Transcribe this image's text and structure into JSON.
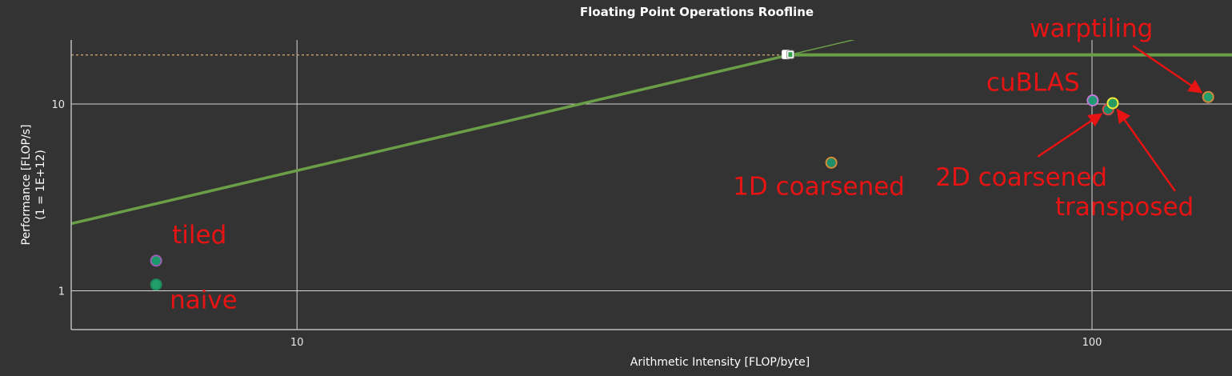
{
  "chart_data": {
    "type": "scatter",
    "title": "Floating Point Operations Roofline",
    "xlabel": "Arithmetic Intensity [FLOP/byte]",
    "ylabel": "Performance [FLOP/s]",
    "ylabel_sub": "(1 = 1E+12)",
    "x_scale": "log",
    "y_scale": "log",
    "xlim": [
      5.2,
      150
    ],
    "ylim": [
      0.62,
      22
    ],
    "x_ticks": [
      {
        "value": 10,
        "label": "10"
      },
      {
        "value": 100,
        "label": "100"
      }
    ],
    "y_ticks": [
      {
        "value": 1,
        "label": "1"
      },
      {
        "value": 10,
        "label": "10"
      }
    ],
    "grid": true,
    "roofline": {
      "peak_performance": 18.3,
      "memory_bandwidth": 0.44,
      "ridge_point": 41.5,
      "color": "#6a9e47",
      "peak_dashed_color": "#c8a26e"
    },
    "points": [
      {
        "name": "naive",
        "x": 6.65,
        "y": 1.08,
        "fill": "#229e6a",
        "stroke": "#1d8a5a",
        "label_color": "#e81313"
      },
      {
        "name": "tiled",
        "x": 6.65,
        "y": 1.45,
        "fill": "#1a9a6a",
        "stroke": "#9b5fb0",
        "label_color": "#e81313"
      },
      {
        "name": "1D coarsened",
        "x": 47.0,
        "y": 4.85,
        "fill": "#1e8f68",
        "stroke": "#d4893a",
        "label_color": "#e81313"
      },
      {
        "name": "cuBLAS",
        "x": 100.2,
        "y": 10.45,
        "fill": "#1f9a73",
        "stroke": "#c57ad6",
        "label_color": "#e81313"
      },
      {
        "name": "2D coarsened",
        "x": 104.8,
        "y": 9.35,
        "fill": "#1a8d66",
        "stroke": "#d94848",
        "label_color": "#e81313"
      },
      {
        "name": "transposed",
        "x": 106.2,
        "y": 10.1,
        "fill": "#2a9a62",
        "stroke": "#f3ee35",
        "label_color": "#e81313"
      },
      {
        "name": "warptiling",
        "x": 140.0,
        "y": 10.9,
        "fill": "#239e6c",
        "stroke": "#d08838",
        "label_color": "#e81313"
      }
    ],
    "annotations": [
      {
        "text": "naive",
        "arrow": false
      },
      {
        "text": "tiled",
        "arrow": false
      },
      {
        "text": "1D coarsened",
        "arrow": false
      },
      {
        "text": "cuBLAS",
        "arrow": false
      },
      {
        "text": "2D coarsened",
        "arrow": true,
        "target": "2D coarsened"
      },
      {
        "text": "transposed",
        "arrow": true,
        "target": "transposed"
      },
      {
        "text": "warptiling",
        "arrow": true,
        "target": "warptiling"
      }
    ],
    "colors": {
      "background": "#333333",
      "grid": "#d6d6d6",
      "axis": "#bdbdbd",
      "text": "#ffffff",
      "annotation": "#e81313"
    }
  }
}
